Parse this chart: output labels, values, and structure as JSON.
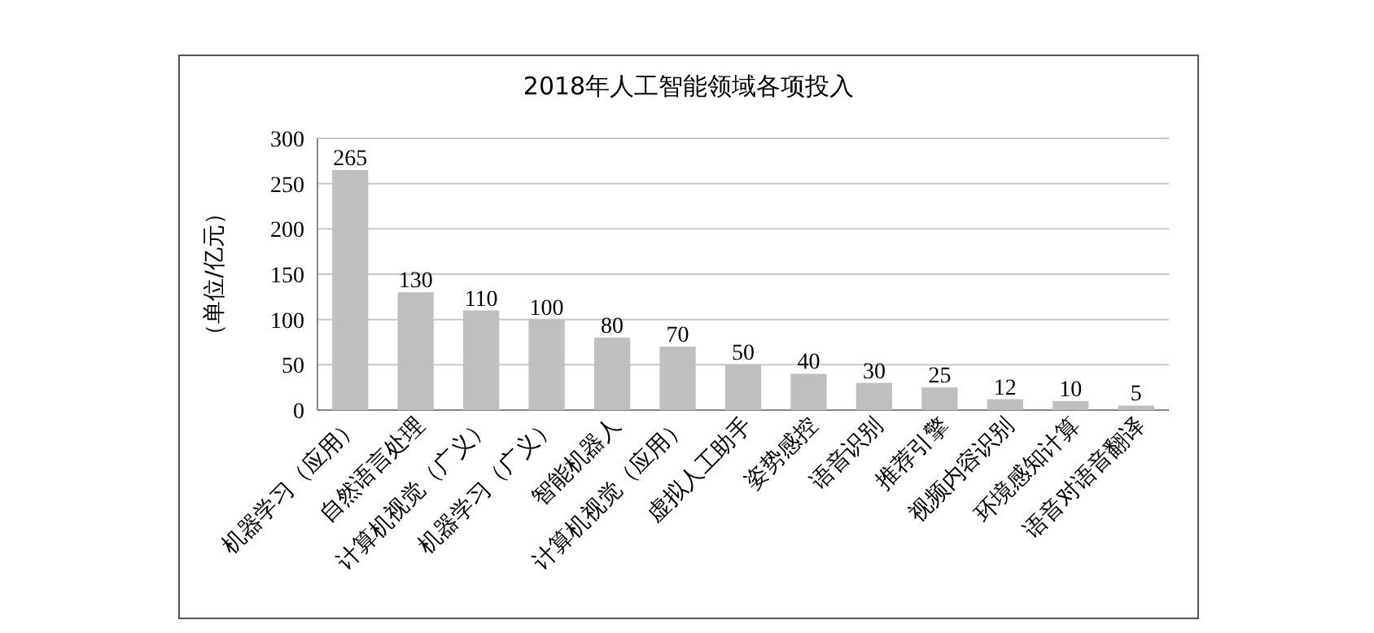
{
  "chart_data": {
    "type": "bar",
    "title": "2018年人工智能领域各项投入",
    "ylabel": "（单位/亿元）",
    "categories": [
      "机器学习（应用）",
      "自然语言处理",
      "计算机视觉（广义）",
      "机器学习（广义）",
      "智能机器人",
      "计算机视觉（应用）",
      "虚拟人工助手",
      "姿势感控",
      "语音识别",
      "推荐引擎",
      "视频内容识别",
      "环境感知计算",
      "语音对语音翻译"
    ],
    "values": [
      265,
      130,
      110,
      100,
      80,
      70,
      50,
      40,
      30,
      25,
      12,
      10,
      5
    ],
    "color": "#bfbfbf",
    "ylim": [
      0,
      300
    ],
    "yticks": [
      0,
      50,
      100,
      150,
      200,
      250,
      300
    ],
    "grid": "y",
    "data_labels": true
  }
}
